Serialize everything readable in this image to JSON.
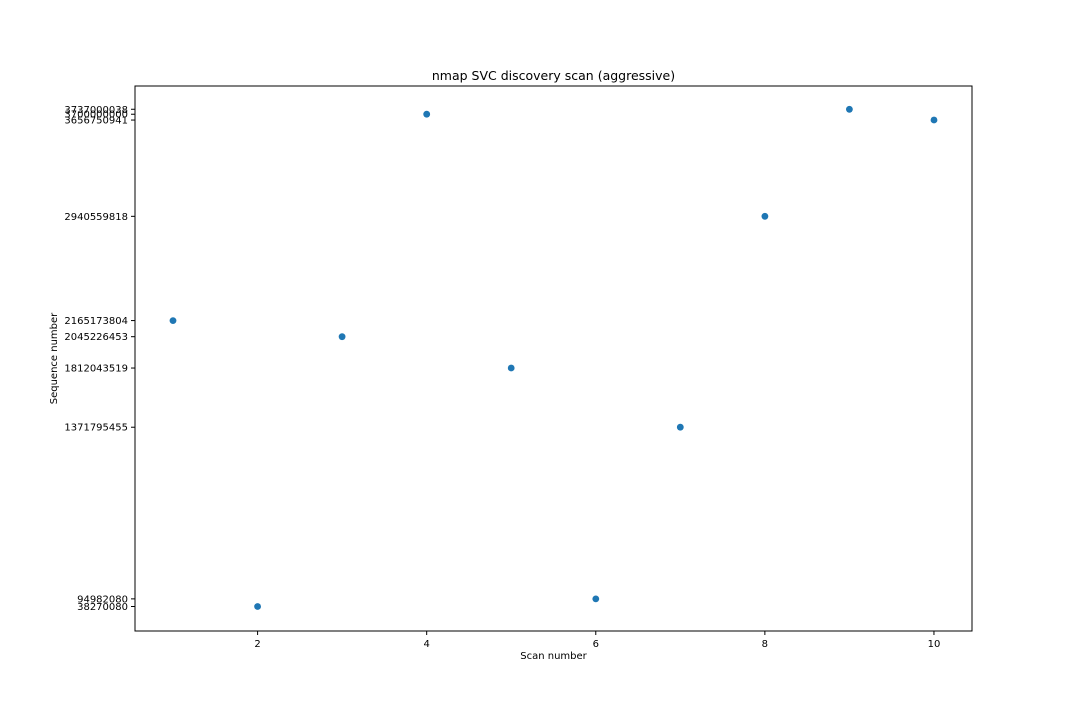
{
  "chart_data": {
    "type": "scatter",
    "title": "nmap SVC discovery scan (aggressive)",
    "xlabel": "Scan number",
    "ylabel": "Sequence number",
    "xlim": [
      0.55,
      10.45
    ],
    "ylim": [
      -144000000,
      3910000000
    ],
    "x_ticks": [
      2,
      4,
      6,
      8,
      10
    ],
    "x_tick_labels": [
      "2",
      "4",
      "6",
      "8",
      "10"
    ],
    "y_ticks": [
      38270080,
      94982080,
      1371795455,
      1812043519,
      2045226453,
      2165173804,
      2940559818,
      3656750941,
      3700000000,
      3737000038
    ],
    "y_tick_labels": [
      "38270080",
      "94982080",
      "1371795455",
      "1812043519",
      "2045226453",
      "2165173804",
      "2940559818",
      "3656750941",
      "3700000000",
      "3737000038"
    ],
    "grid": false,
    "marker_color": "#1f77b4",
    "series": [
      {
        "x": [
          1,
          2,
          3,
          4,
          5,
          6,
          7,
          8,
          9,
          10
        ],
        "y": [
          2165173804,
          38270080,
          2045226453,
          3700000000,
          1812043519,
          94982080,
          1371795455,
          2940559818,
          3737000038,
          3656750941
        ]
      }
    ]
  }
}
